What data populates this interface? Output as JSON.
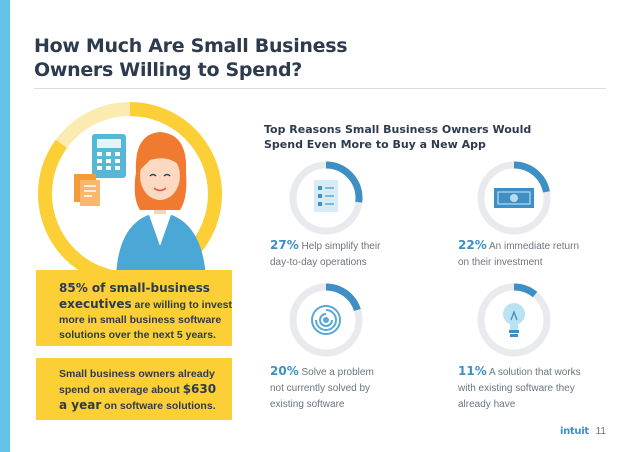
{
  "title_line1": "How Much Are Small Business",
  "title_line2": "Owners Willing to Spend?",
  "hero": {
    "spend_fraction": 0.85
  },
  "box1": {
    "pct": "85% of small-business",
    "big": "executives",
    "rest1": " are willing to invest",
    "line3": "more in small business software",
    "line4": "solutions over the next 5 years."
  },
  "box2": {
    "line1": "Small business owners already",
    "line2a": "spend on average about ",
    "amount": "$630",
    "big2": "a year",
    "line3b": " on software solutions."
  },
  "reasons": {
    "title_line1": "Top Reasons Small Business Owners Would",
    "title_line2": "Spend Even More to Buy a New App",
    "items": [
      {
        "pct_value": 27,
        "pct": "27%",
        "line1": " Help simplify their",
        "line2": "day-to-day operations",
        "line3": "",
        "icon": "checklist-icon"
      },
      {
        "pct_value": 22,
        "pct": "22%",
        "line1": " An immediate return",
        "line2": "on their investment",
        "line3": "",
        "icon": "money-icon"
      },
      {
        "pct_value": 20,
        "pct": "20%",
        "line1": " Solve a problem",
        "line2": "not currently solved by",
        "line3": "existing software",
        "icon": "maze-icon"
      },
      {
        "pct_value": 11,
        "pct": "11%",
        "line1": " A solution that works",
        "line2": "with existing software they",
        "line3": "already have",
        "icon": "lightbulb-icon"
      }
    ]
  },
  "footer": {
    "brand": "intuit",
    "page": "11"
  },
  "colors": {
    "accent": "#3d8fc4",
    "yellow": "#fbcf35",
    "ring_bg": "#e8eaed",
    "sidebar": "#64c3e8"
  }
}
